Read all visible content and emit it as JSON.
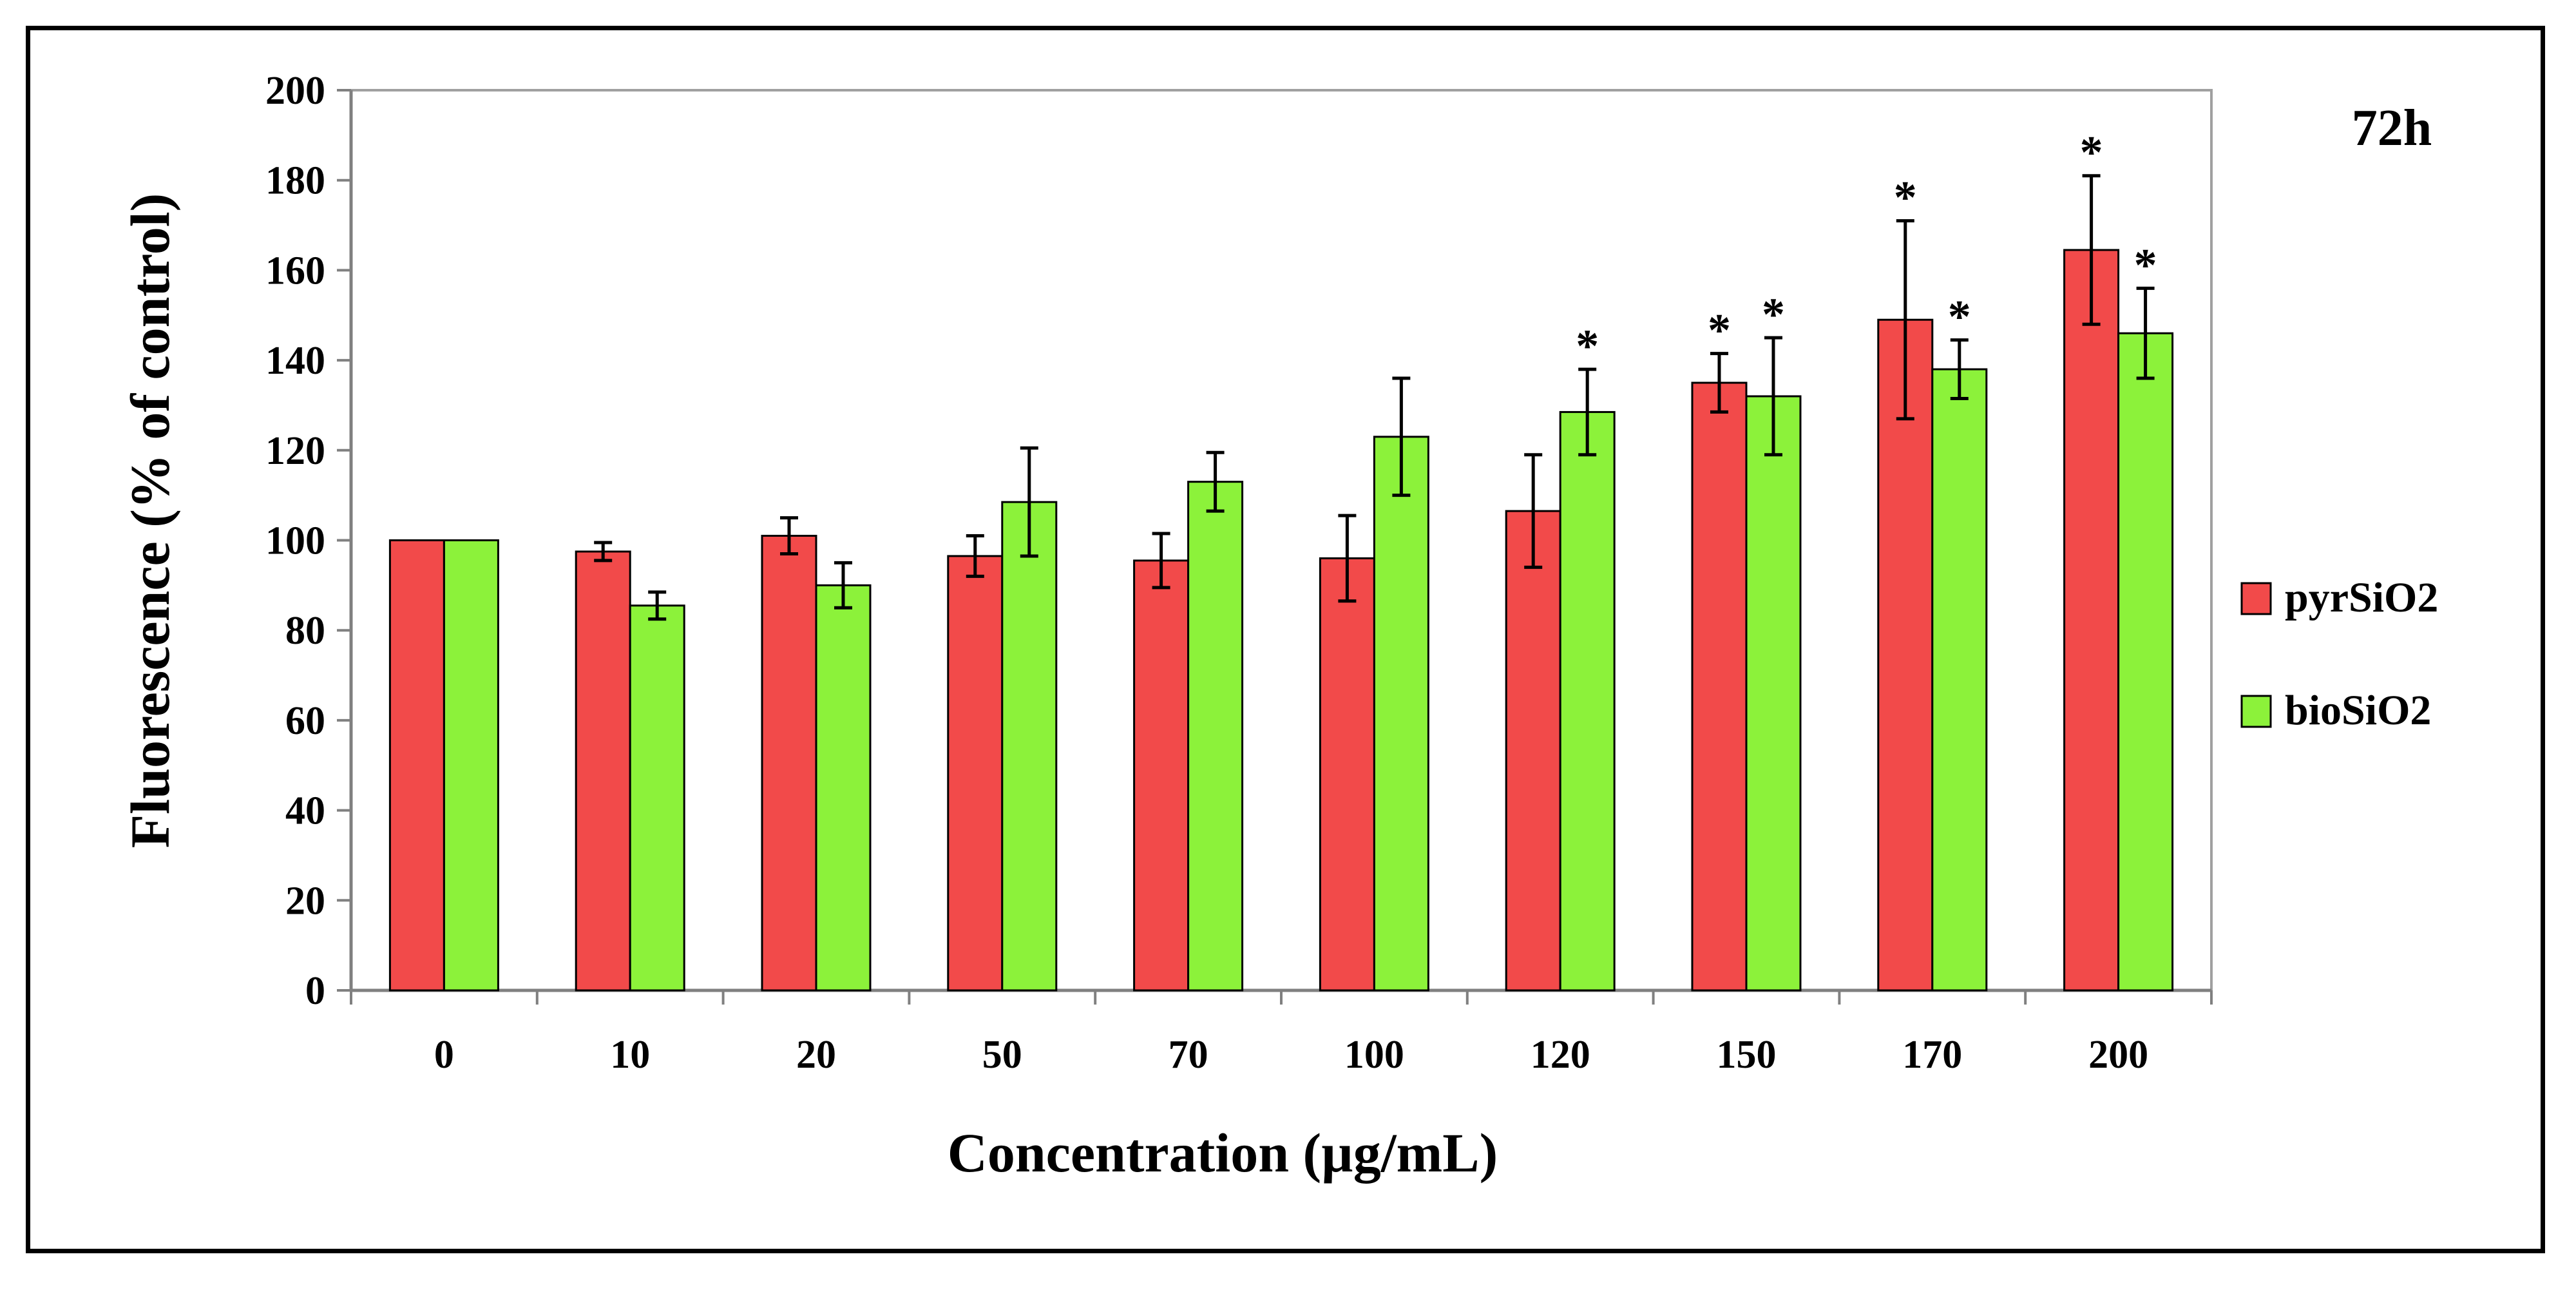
{
  "chart_data": {
    "type": "bar",
    "title": "",
    "panel_label": "72h",
    "xlabel": "Concentration (µg/mL)",
    "ylabel": "Fluorescence (% of control)",
    "ylim": [
      0,
      200
    ],
    "yticks": [
      "0",
      "20",
      "40",
      "60",
      "80",
      "100",
      "120",
      "140",
      "160",
      "180",
      "200"
    ],
    "ytick_values": [
      0,
      20,
      40,
      60,
      80,
      100,
      120,
      140,
      160,
      180,
      200
    ],
    "grid": false,
    "legend_position": "right",
    "categories": [
      "0",
      "10",
      "20",
      "50",
      "70",
      "100",
      "120",
      "150",
      "170",
      "200"
    ],
    "series": [
      {
        "name": "pyrSiO2",
        "color": "#f24a4a",
        "values": [
          100,
          97.5,
          101,
          96.5,
          95.5,
          96,
          106.5,
          135,
          149,
          164.5
        ],
        "errors": [
          0,
          2,
          4,
          4.5,
          6,
          9.5,
          12.5,
          6.5,
          22,
          16.5
        ],
        "significant": [
          false,
          false,
          false,
          false,
          false,
          false,
          false,
          true,
          true,
          true
        ]
      },
      {
        "name": "bioSiO2",
        "color": "#8cf23a",
        "values": [
          100,
          85.5,
          90,
          108.5,
          113,
          123,
          128.5,
          132,
          138,
          146
        ],
        "errors": [
          0,
          3,
          5,
          12,
          6.5,
          13,
          9.5,
          13,
          6.5,
          10
        ],
        "significant": [
          false,
          false,
          false,
          false,
          false,
          false,
          true,
          true,
          true,
          true
        ]
      }
    ],
    "significance_marker": "*"
  }
}
